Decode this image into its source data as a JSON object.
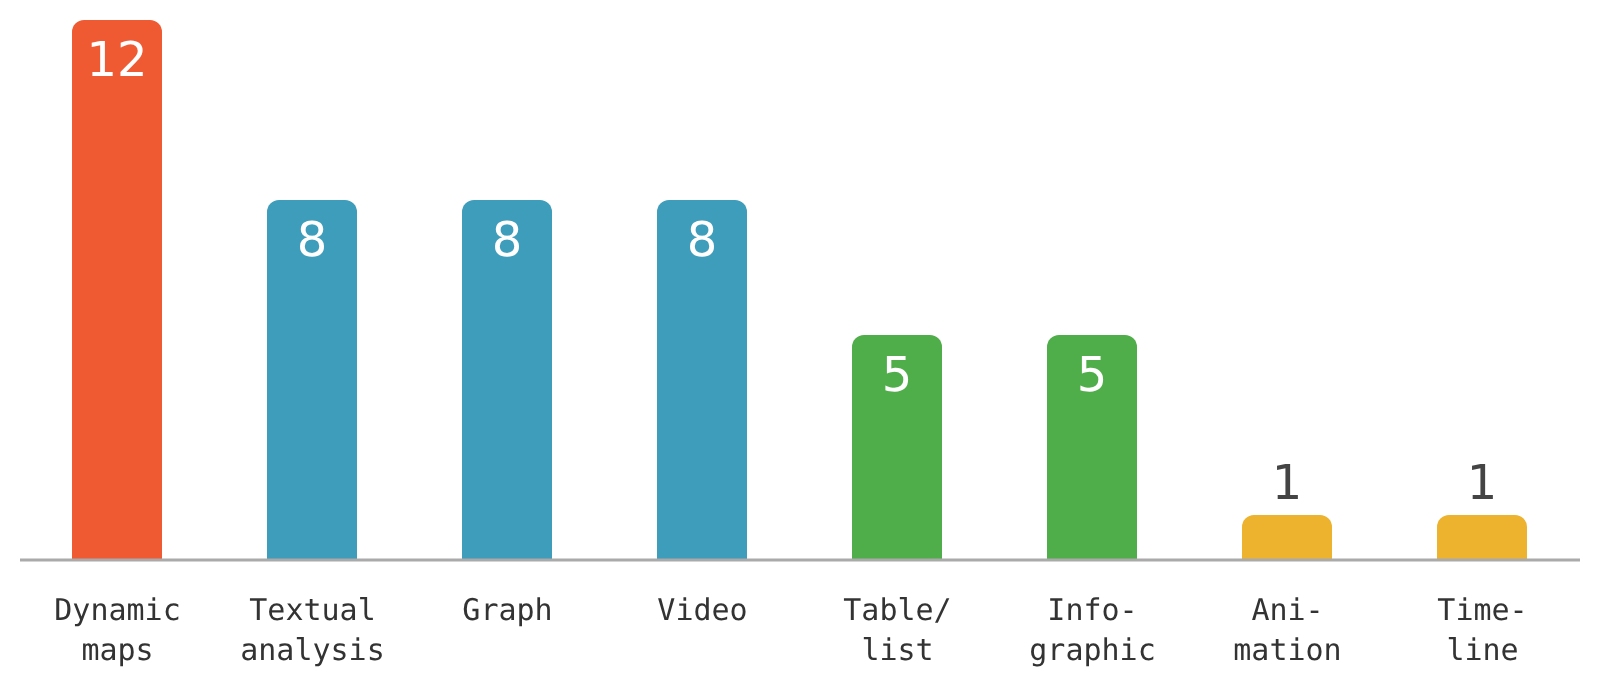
{
  "chart_data": {
    "type": "bar",
    "categories": [
      "Dynamic\nmaps",
      "Textual\nanalysis",
      "Graph",
      "Video",
      "Table/\nlist",
      "Info-\ngraphic",
      "Ani-\nmation",
      "Time-\nline"
    ],
    "values": [
      12,
      8,
      8,
      8,
      5,
      5,
      1,
      1
    ],
    "colors": [
      "#f05a33",
      "#3d9dba",
      "#3d9dba",
      "#3d9dba",
      "#4fae4a",
      "#4fae4a",
      "#edb32e",
      "#edb32e"
    ],
    "data_labels": true
  }
}
